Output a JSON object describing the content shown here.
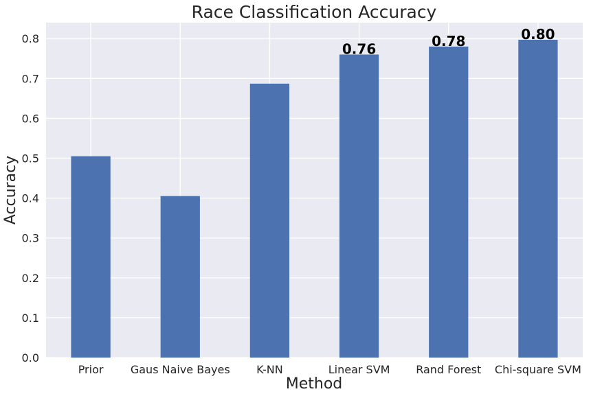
{
  "chart_data": {
    "type": "bar",
    "title": "Race Classification Accuracy",
    "xlabel": "Method",
    "ylabel": "Accuracy",
    "categories": [
      "Prior",
      "Gaus Naive Bayes",
      "K-NN",
      "Linear SVM",
      "Rand Forest",
      "Chi-square SVM"
    ],
    "values": [
      0.505,
      0.405,
      0.687,
      0.76,
      0.78,
      0.797
    ],
    "data_labels": [
      "",
      "",
      "",
      "0.76",
      "0.78",
      "0.80"
    ],
    "ylim": [
      0,
      0.84
    ],
    "yticks": [
      0.0,
      0.1,
      0.2,
      0.3,
      0.4,
      0.5,
      0.6,
      0.7,
      0.8
    ],
    "ytick_labels": [
      "0.0",
      "0.1",
      "0.2",
      "0.3",
      "0.4",
      "0.5",
      "0.6",
      "0.7",
      "0.8"
    ],
    "grid": true,
    "colors": {
      "bar": "#4c72b0",
      "background": "#eaeaf2",
      "grid": "#ffffff"
    }
  }
}
